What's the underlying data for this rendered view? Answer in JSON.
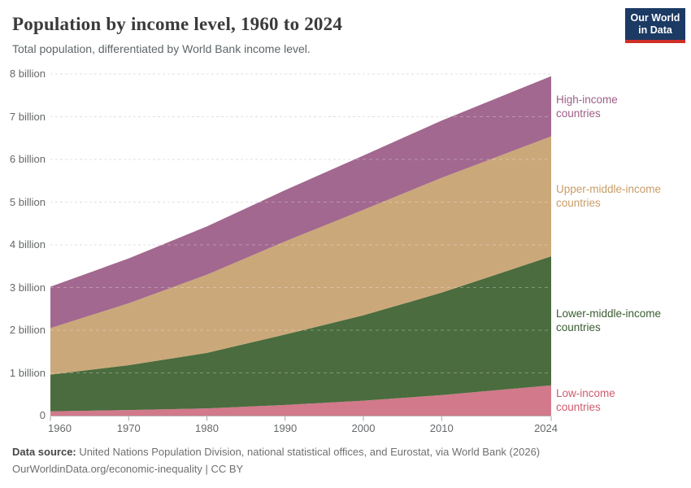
{
  "header": {
    "title": "Population by income level, 1960 to 2024",
    "subtitle": "Total population, differentiated by World Bank income level.",
    "logo": {
      "line1": "Our World",
      "line2": "in Data",
      "bg_color": "#1b3a64",
      "bar_color": "#cf2f28"
    }
  },
  "chart_data": {
    "type": "area",
    "stacked": true,
    "title": "Population by income level, 1960 to 2024",
    "subtitle": "Total population, differentiated by World Bank income level.",
    "xlabel": "",
    "ylabel": "",
    "x": [
      1960,
      1970,
      1980,
      1990,
      2000,
      2010,
      2024
    ],
    "xlim": [
      1960,
      2024
    ],
    "ylim": [
      0,
      8
    ],
    "grid": "horizontal-dashed",
    "legend_position": "right-outside",
    "units": "billion",
    "series": [
      {
        "name": "Low-income countries",
        "name_lines": [
          "Low-income",
          "countries"
        ],
        "color": "#d2798b",
        "label_color": "#cf5b6d",
        "values": [
          0.1,
          0.13,
          0.17,
          0.25,
          0.35,
          0.48,
          0.71
        ]
      },
      {
        "name": "Lower-middle-income countries",
        "name_lines": [
          "Lower-middle-income",
          "countries"
        ],
        "color": "#4b6c3e",
        "label_color": "#3a5c31",
        "values": [
          0.86,
          1.05,
          1.3,
          1.65,
          2.0,
          2.4,
          3.02
        ]
      },
      {
        "name": "Upper-middle-income countries",
        "name_lines": [
          "Upper-middle-income",
          "countries"
        ],
        "color": "#cba87a",
        "label_color": "#c89c67",
        "values": [
          1.09,
          1.45,
          1.83,
          2.18,
          2.47,
          2.69,
          2.81
        ]
      },
      {
        "name": "High-income countries",
        "name_lines": [
          "High-income",
          "countries"
        ],
        "color": "#a2688f",
        "label_color": "#9c5e85",
        "values": [
          0.97,
          1.05,
          1.13,
          1.2,
          1.27,
          1.34,
          1.41
        ]
      }
    ],
    "yticks": [
      {
        "v": 0,
        "label": "0"
      },
      {
        "v": 1,
        "label": "1 billion"
      },
      {
        "v": 2,
        "label": "2 billion"
      },
      {
        "v": 3,
        "label": "3 billion"
      },
      {
        "v": 4,
        "label": "4 billion"
      },
      {
        "v": 5,
        "label": "5 billion"
      },
      {
        "v": 6,
        "label": "6 billion"
      },
      {
        "v": 7,
        "label": "7 billion"
      },
      {
        "v": 8,
        "label": "8 billion"
      }
    ],
    "xticks": [
      "1960",
      "1970",
      "1980",
      "1990",
      "2000",
      "2010",
      "2024"
    ]
  },
  "footer": {
    "source_label": "Data source:",
    "source_text": " United Nations Population Division, national statistical offices, and Eurostat, via World Bank (2026)",
    "note": "OurWorldinData.org/economic-inequality | CC BY"
  }
}
